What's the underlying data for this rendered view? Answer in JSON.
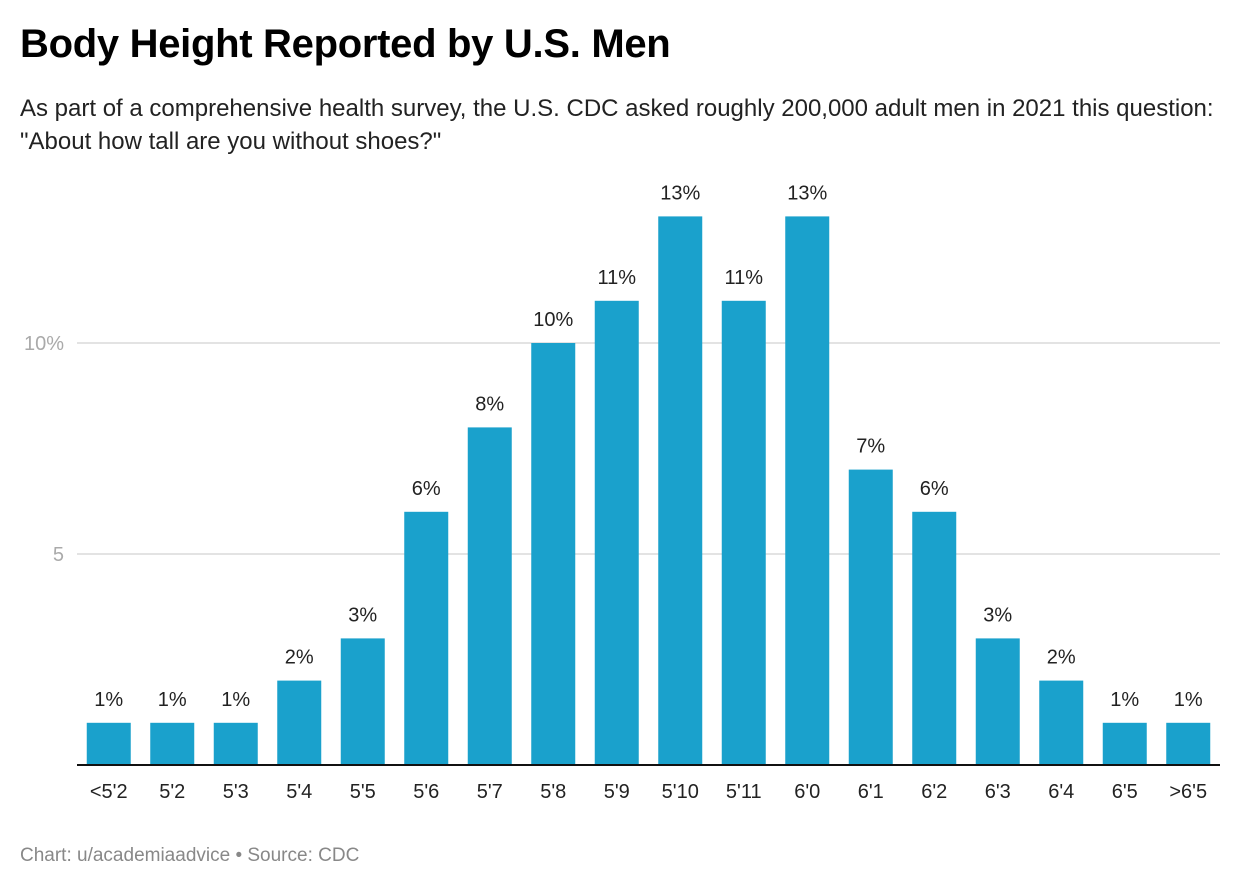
{
  "chart_data": {
    "type": "bar",
    "title": "Body Height Reported by U.S. Men",
    "subtitle": "As part of a comprehensive health survey, the U.S. CDC asked roughly 200,000 adult men in 2021 this question: \"About how tall are you without shoes?\"",
    "categories": [
      "<5'2",
      "5'2",
      "5'3",
      "5'4",
      "5'5",
      "5'6",
      "5'7",
      "5'8",
      "5'9",
      "5'10",
      "5'11",
      "6'0",
      "6'1",
      "6'2",
      "6'3",
      "6'4",
      "6'5",
      ">6'5"
    ],
    "values": [
      1,
      1,
      1,
      2,
      3,
      6,
      8,
      10,
      11,
      13,
      11,
      13,
      7,
      6,
      3,
      2,
      1,
      1
    ],
    "data_labels": [
      "1%",
      "1%",
      "1%",
      "2%",
      "3%",
      "6%",
      "8%",
      "10%",
      "11%",
      "13%",
      "11%",
      "13%",
      "7%",
      "6%",
      "3%",
      "2%",
      "1%",
      "1%"
    ],
    "y_ticks": [
      {
        "value": 5,
        "label": "5"
      },
      {
        "value": 10,
        "label": "10%"
      }
    ],
    "xlabel": "",
    "ylabel": "",
    "ylim": [
      0,
      14
    ],
    "grid": true,
    "bar_color": "#1aa1cc",
    "footer": "Chart: u/academiaadvice • Source: CDC"
  }
}
